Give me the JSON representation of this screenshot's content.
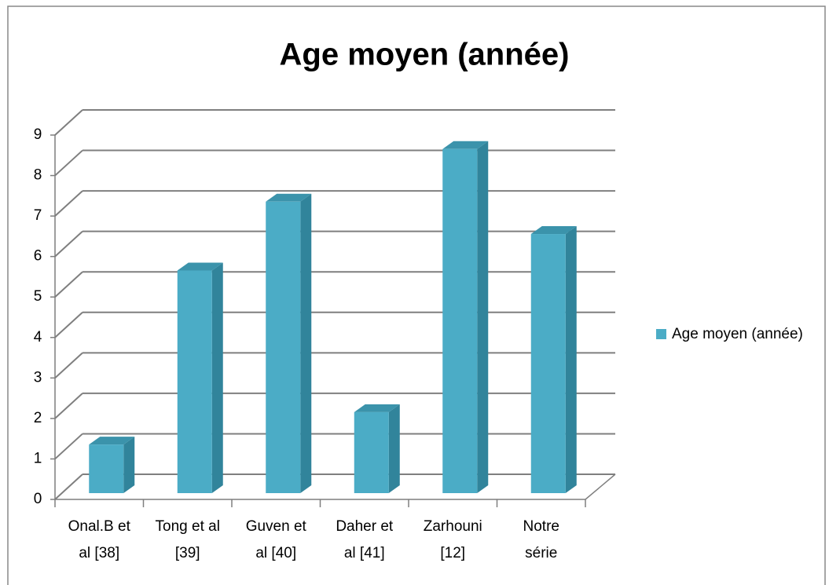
{
  "chart_data": {
    "type": "bar3d",
    "title": "Age moyen (année)",
    "categories": [
      "Onal.B et\nal [38]",
      "Tong et al\n[39]",
      "Guven et\nal [40]",
      "Daher et\nal [41]",
      "Zarhouni\n[12]",
      "Notre\nsérie"
    ],
    "series": [
      {
        "name": "Age moyen (année)",
        "color": "#4bacc6",
        "values": [
          1.2,
          5.5,
          7.2,
          2.0,
          8.5,
          6.4
        ]
      }
    ],
    "ylim": [
      0,
      9
    ],
    "yticks": [
      0,
      1,
      2,
      3,
      4,
      5,
      6,
      7,
      8,
      9
    ],
    "grid": true,
    "legend": "right"
  }
}
